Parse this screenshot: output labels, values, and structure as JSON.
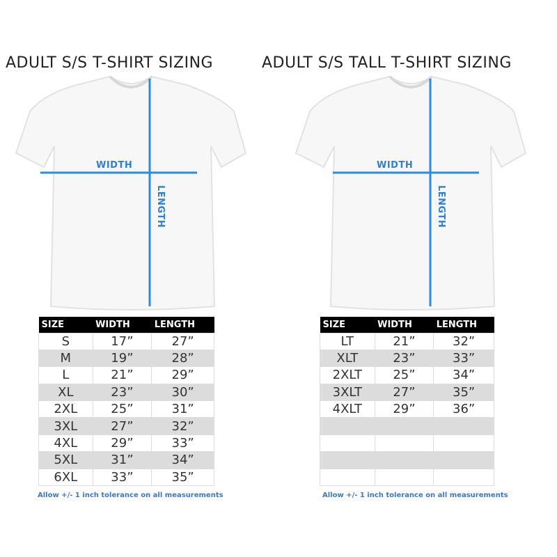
{
  "accent_color": "#2f7fd9",
  "charts": [
    {
      "title": "ADULT S/S T-SHIRT SIZING",
      "width_label": "WIDTH",
      "length_label": "LENGTH",
      "table": {
        "headers": [
          "SIZE",
          "WIDTH",
          "LENGTH"
        ],
        "rows": [
          [
            "S",
            "17”",
            "27”"
          ],
          [
            "M",
            "19”",
            "28”"
          ],
          [
            "L",
            "21”",
            "29”"
          ],
          [
            "XL",
            "23”",
            "30”"
          ],
          [
            "2XL",
            "25”",
            "31”"
          ],
          [
            "3XL",
            "27”",
            "32”"
          ],
          [
            "4XL",
            "29”",
            "33”"
          ],
          [
            "5XL",
            "31”",
            "34”"
          ],
          [
            "6XL",
            "33”",
            "35”"
          ]
        ]
      },
      "note": "Allow +/- 1 inch tolerance on all measurements"
    },
    {
      "title": "ADULT S/S TALL T-SHIRT SIZING",
      "width_label": "WIDTH",
      "length_label": "LENGTH",
      "table": {
        "headers": [
          "SIZE",
          "WIDTH",
          "LENGTH"
        ],
        "rows": [
          [
            "LT",
            "21”",
            "32”"
          ],
          [
            "XLT",
            "23”",
            "33”"
          ],
          [
            "2XLT",
            "25”",
            "34”"
          ],
          [
            "3XLT",
            "27”",
            "35”"
          ],
          [
            "4XLT",
            "29”",
            "36”"
          ],
          [
            "",
            "",
            ""
          ],
          [
            "",
            "",
            ""
          ],
          [
            "",
            "",
            ""
          ],
          [
            "",
            "",
            ""
          ]
        ]
      },
      "note": "Allow +/- 1 inch tolerance on all measurements"
    }
  ]
}
